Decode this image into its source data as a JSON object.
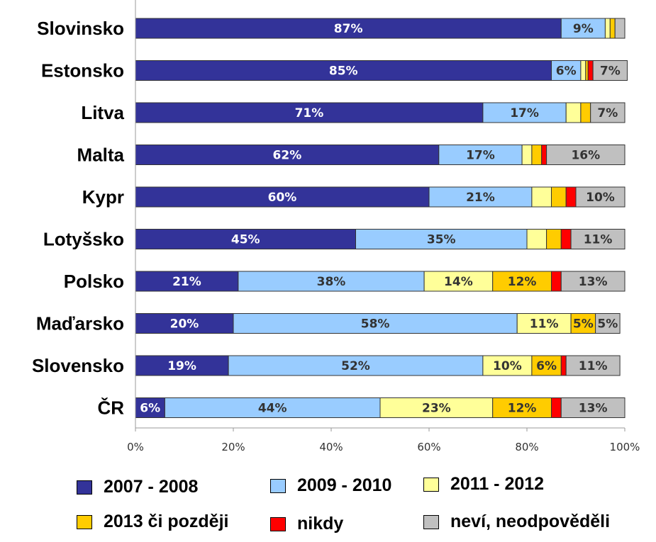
{
  "chart_data": {
    "type": "bar",
    "orientation": "horizontal",
    "stacked": true,
    "categories": [
      "Slovinsko",
      "Estonsko",
      "Litva",
      "Malta",
      "Kypr",
      "Lotyšsko",
      "Polsko",
      "Maďarsko",
      "Slovensko",
      "ČR"
    ],
    "series": [
      {
        "name": "2007 - 2008",
        "color": "#333399",
        "values": [
          87,
          85,
          71,
          62,
          60,
          45,
          21,
          20,
          19,
          6
        ]
      },
      {
        "name": "2009 - 2010",
        "color": "#99CCFF",
        "values": [
          9,
          6,
          17,
          17,
          21,
          35,
          38,
          58,
          52,
          44
        ]
      },
      {
        "name": "2011 - 2012",
        "color": "#FFFF99",
        "values": [
          1,
          1,
          3,
          2,
          4,
          4,
          14,
          11,
          10,
          23
        ]
      },
      {
        "name": "2013 či později",
        "color": "#FFCC00",
        "values": [
          1,
          0.5,
          2,
          2,
          3,
          3,
          12,
          5,
          6,
          12
        ]
      },
      {
        "name": "nikdy",
        "color": "#FF0000",
        "values": [
          0,
          1,
          0,
          1,
          2,
          2,
          2,
          0,
          1,
          2
        ]
      },
      {
        "name": "neví, neodpověděli",
        "color": "#C0C0C0",
        "values": [
          2,
          7,
          7,
          16,
          10,
          11,
          13,
          5,
          11,
          13
        ]
      }
    ],
    "data_labels": [
      [
        "87%",
        "9%",
        "",
        "",
        "",
        ""
      ],
      [
        "85%",
        "6%",
        "",
        "",
        "",
        "7%"
      ],
      [
        "71%",
        "17%",
        "",
        "",
        "",
        "7%"
      ],
      [
        "62%",
        "17%",
        "",
        "",
        "",
        "16%"
      ],
      [
        "60%",
        "21%",
        "",
        "",
        "",
        "10%"
      ],
      [
        "45%",
        "35%",
        "",
        "",
        "",
        "11%"
      ],
      [
        "21%",
        "38%",
        "14%",
        "12%",
        "",
        "13%"
      ],
      [
        "20%",
        "58%",
        "11%",
        "5%",
        "",
        "5%"
      ],
      [
        "19%",
        "52%",
        "10%",
        "6%",
        "",
        "11%"
      ],
      [
        "6%",
        "44%",
        "23%",
        "12%",
        "",
        "13%"
      ]
    ],
    "xlim": [
      0,
      100
    ],
    "xticks": [
      "0%",
      "20%",
      "40%",
      "60%",
      "80%",
      "100%"
    ],
    "legend_position": "bottom",
    "grid": false
  }
}
